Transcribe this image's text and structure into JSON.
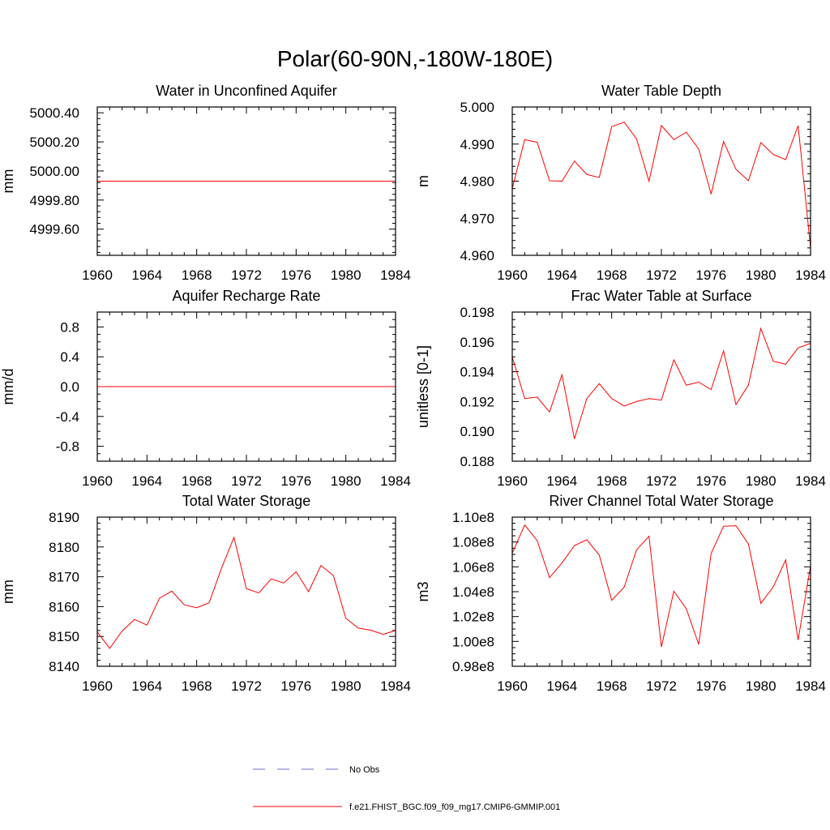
{
  "colors": {
    "model": "#ff0000",
    "obs": "#6a6acd",
    "axis": "#000000"
  },
  "chart_data": {
    "title": "Polar(60-90N,-180W-180E)",
    "legend": [
      {
        "label": "No Obs",
        "style": "dashed",
        "color": "#6a6acd"
      },
      {
        "label": "f.e21.FHIST_BGC.f09_f09_mg17.CMIP6-GMMIP.001",
        "style": "solid",
        "color": "#ff0000"
      }
    ],
    "panels": [
      {
        "type": "line",
        "title": "Water in Unconfined Aquifer",
        "ylabel": "mm",
        "xlim": [
          1960,
          1984
        ],
        "xticks": [
          1960,
          1964,
          1968,
          1972,
          1976,
          1980,
          1984
        ],
        "xtick_labels": [
          "1960",
          "1964",
          "1968",
          "1972",
          "1976",
          "1980",
          "1984"
        ],
        "ylim": [
          4999.42,
          5000.44
        ],
        "yticks": [
          4999.6,
          4999.8,
          5000.0,
          5000.2,
          5000.4
        ],
        "ytick_labels": [
          "4999.60",
          "4999.80",
          "5000.00",
          "5000.20",
          "5000.40"
        ],
        "yminor": [
          4999.44,
          4999.48,
          4999.52,
          4999.56,
          4999.64,
          4999.68,
          4999.72,
          4999.76,
          4999.84,
          4999.88,
          4999.92,
          4999.96,
          5000.04,
          5000.08,
          5000.12,
          5000.16,
          5000.24,
          5000.28,
          5000.32,
          5000.36
        ],
        "x": [
          1960,
          1984
        ],
        "series": [
          {
            "name": "f.e21.FHIST_BGC.f09_f09_mg17.CMIP6-GMMIP.001",
            "values": [
              4999.93,
              4999.93
            ]
          }
        ]
      },
      {
        "type": "line",
        "title": "Water Table Depth",
        "ylabel": "m",
        "xlim": [
          1960,
          1984
        ],
        "xticks": [
          1960,
          1964,
          1968,
          1972,
          1976,
          1980,
          1984
        ],
        "xtick_labels": [
          "1960",
          "1964",
          "1968",
          "1972",
          "1976",
          "1980",
          "1984"
        ],
        "ylim": [
          4.96,
          5.0
        ],
        "yticks": [
          4.96,
          4.97,
          4.98,
          4.99,
          5.0
        ],
        "ytick_labels": [
          "4.960",
          "4.970",
          "4.980",
          "4.990",
          "5.000"
        ],
        "yminor": [
          4.962,
          4.964,
          4.966,
          4.968,
          4.972,
          4.974,
          4.976,
          4.978,
          4.982,
          4.984,
          4.986,
          4.988,
          4.992,
          4.994,
          4.996,
          4.998
        ],
        "x": [
          1960,
          1961,
          1962,
          1963,
          1964,
          1965,
          1966,
          1967,
          1968,
          1969,
          1970,
          1971,
          1972,
          1973,
          1974,
          1975,
          1976,
          1977,
          1978,
          1979,
          1980,
          1981,
          1982,
          1983,
          1984
        ],
        "series": [
          {
            "name": "f.e21.FHIST_BGC.f09_f09_mg17.CMIP6-GMMIP.001",
            "values": [
              4.978,
              4.9912,
              4.9905,
              4.9801,
              4.98,
              4.9854,
              4.9818,
              4.981,
              4.9947,
              4.9959,
              4.9914,
              4.98,
              4.995,
              4.9912,
              4.9932,
              4.9887,
              4.9765,
              4.9907,
              4.9832,
              4.9801,
              4.9904,
              4.9872,
              4.9858,
              4.995,
              4.962
            ]
          }
        ]
      },
      {
        "type": "line",
        "title": "Aquifer Recharge Rate",
        "ylabel": "mm/d",
        "xlim": [
          1960,
          1984
        ],
        "xticks": [
          1960,
          1964,
          1968,
          1972,
          1976,
          1980,
          1984
        ],
        "xtick_labels": [
          "1960",
          "1964",
          "1968",
          "1972",
          "1976",
          "1980",
          "1984"
        ],
        "ylim": [
          -1.0,
          1.0
        ],
        "yticks": [
          -0.8,
          -0.4,
          0.0,
          0.4,
          0.8
        ],
        "ytick_labels": [
          "-0.8",
          "-0.4",
          "0.0",
          "0.4",
          "0.8"
        ],
        "yminor": [
          -0.9,
          -0.7,
          -0.6,
          -0.5,
          -0.3,
          -0.2,
          -0.1,
          0.1,
          0.2,
          0.3,
          0.5,
          0.6,
          0.7,
          0.9
        ],
        "x": [
          1960,
          1984
        ],
        "series": [
          {
            "name": "f.e21.FHIST_BGC.f09_f09_mg17.CMIP6-GMMIP.001",
            "values": [
              0.0,
              0.0
            ]
          }
        ]
      },
      {
        "type": "line",
        "title": "Frac Water Table at Surface",
        "ylabel": "unitless [0-1]",
        "xlim": [
          1960,
          1984
        ],
        "xticks": [
          1960,
          1964,
          1968,
          1972,
          1976,
          1980,
          1984
        ],
        "xtick_labels": [
          "1960",
          "1964",
          "1968",
          "1972",
          "1976",
          "1980",
          "1984"
        ],
        "ylim": [
          0.188,
          0.198
        ],
        "yticks": [
          0.188,
          0.19,
          0.192,
          0.194,
          0.196,
          0.198
        ],
        "ytick_labels": [
          "0.188",
          "0.190",
          "0.192",
          "0.194",
          "0.196",
          "0.198"
        ],
        "yminor": [
          0.1885,
          0.189,
          0.1895,
          0.1905,
          0.191,
          0.1915,
          0.1925,
          0.193,
          0.1935,
          0.1945,
          0.195,
          0.1955,
          0.1965,
          0.197,
          0.1975
        ],
        "x": [
          1960,
          1961,
          1962,
          1963,
          1964,
          1965,
          1966,
          1967,
          1968,
          1969,
          1970,
          1971,
          1972,
          1973,
          1974,
          1975,
          1976,
          1977,
          1978,
          1979,
          1980,
          1981,
          1982,
          1983,
          1984
        ],
        "series": [
          {
            "name": "f.e21.FHIST_BGC.f09_f09_mg17.CMIP6-GMMIP.001",
            "values": [
              0.195,
              0.1922,
              0.1923,
              0.1913,
              0.1938,
              0.1895,
              0.1922,
              0.1932,
              0.1922,
              0.1917,
              0.192,
              0.1922,
              0.1921,
              0.1948,
              0.1931,
              0.1933,
              0.1928,
              0.1954,
              0.1918,
              0.1931,
              0.1969,
              0.1947,
              0.1945,
              0.1956,
              0.1959
            ]
          }
        ]
      },
      {
        "type": "line",
        "title": "Total Water Storage",
        "ylabel": "mm",
        "xlim": [
          1960,
          1984
        ],
        "xticks": [
          1960,
          1964,
          1968,
          1972,
          1976,
          1980,
          1984
        ],
        "xtick_labels": [
          "1960",
          "1964",
          "1968",
          "1972",
          "1976",
          "1980",
          "1984"
        ],
        "ylim": [
          8140,
          8190
        ],
        "yticks": [
          8140,
          8150,
          8160,
          8170,
          8180,
          8190
        ],
        "ytick_labels": [
          "8140",
          "8150",
          "8160",
          "8170",
          "8180",
          "8190"
        ],
        "yminor": [
          8142,
          8144,
          8146,
          8148,
          8152,
          8154,
          8156,
          8158,
          8162,
          8164,
          8166,
          8168,
          8172,
          8174,
          8176,
          8178,
          8182,
          8184,
          8186,
          8188
        ],
        "x": [
          1960,
          1961,
          1962,
          1963,
          1964,
          1965,
          1966,
          1967,
          1968,
          1969,
          1970,
          1971,
          1972,
          1973,
          1974,
          1975,
          1976,
          1977,
          1978,
          1979,
          1980,
          1981,
          1982,
          1983,
          1984
        ],
        "series": [
          {
            "name": "f.e21.FHIST_BGC.f09_f09_mg17.CMIP6-GMMIP.001",
            "values": [
              8151.5,
              8146.0,
              8151.8,
              8155.7,
              8153.8,
              8162.8,
              8165.2,
              8160.6,
              8159.6,
              8161.3,
              8172.9,
              8183.2,
              8166.0,
              8164.6,
              8169.3,
              8167.9,
              8171.7,
              8165.0,
              8173.8,
              8170.4,
              8156.1,
              8152.8,
              8152.1,
              8150.7,
              8152.0
            ]
          }
        ]
      },
      {
        "type": "line",
        "title": "River Channel Total Water Storage",
        "ylabel": "m3",
        "xlim": [
          1960,
          1984
        ],
        "xticks": [
          1960,
          1964,
          1968,
          1972,
          1976,
          1980,
          1984
        ],
        "xtick_labels": [
          "1960",
          "1964",
          "1968",
          "1972",
          "1976",
          "1980",
          "1984"
        ],
        "ylim": [
          0.98,
          1.1
        ],
        "yticks": [
          0.98,
          1.0,
          1.02,
          1.04,
          1.06,
          1.08,
          1.1
        ],
        "ytick_labels": [
          "0.98e8",
          "1.00e8",
          "1.02e8",
          "1.04e8",
          "1.06e8",
          "1.08e8",
          "1.10e8"
        ],
        "yminor": [
          0.985,
          0.99,
          0.995,
          1.005,
          1.01,
          1.015,
          1.025,
          1.03,
          1.035,
          1.045,
          1.05,
          1.055,
          1.065,
          1.07,
          1.075,
          1.085,
          1.09,
          1.095
        ],
        "x": [
          1960,
          1961,
          1962,
          1963,
          1964,
          1965,
          1966,
          1967,
          1968,
          1969,
          1970,
          1971,
          1972,
          1973,
          1974,
          1975,
          1976,
          1977,
          1978,
          1979,
          1980,
          1981,
          1982,
          1983,
          1984
        ],
        "series": [
          {
            "name": "f.e21.FHIST_BGC.f09_f09_mg17.CMIP6-GMMIP.001",
            "values": [
              1.071,
              1.0937,
              1.0812,
              1.0513,
              1.0632,
              1.0771,
              1.0818,
              1.0695,
              1.0331,
              1.0436,
              1.0737,
              1.0846,
              0.9955,
              1.0404,
              1.0264,
              0.9976,
              1.0707,
              1.0927,
              1.0931,
              1.0784,
              1.0306,
              1.0439,
              1.0656,
              1.0012,
              1.061
            ]
          }
        ]
      }
    ]
  }
}
